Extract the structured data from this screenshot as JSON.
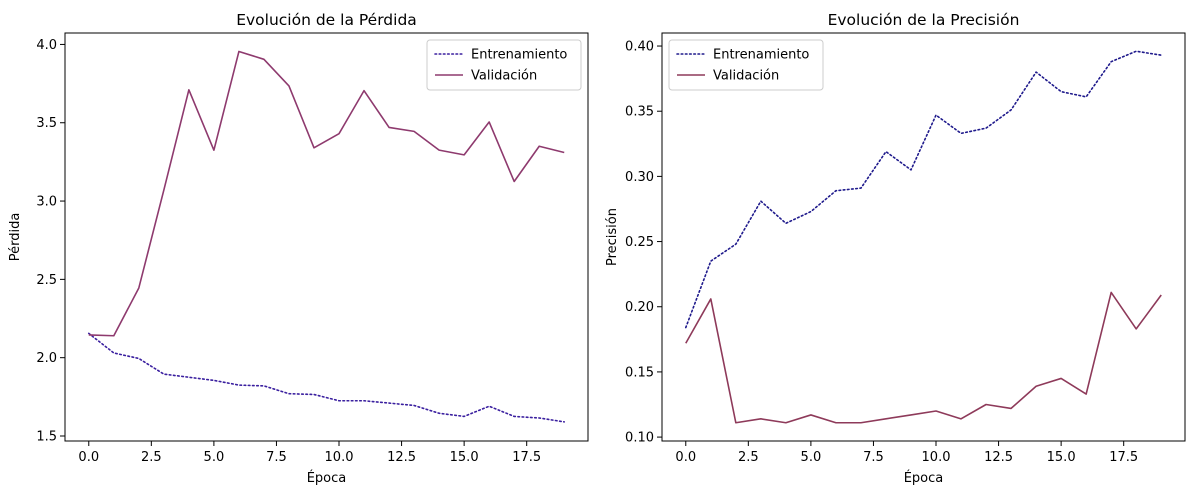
{
  "chart_data": [
    {
      "type": "line",
      "title": "Evolución de la Pérdida",
      "xlabel": "Época",
      "ylabel": "Pérdida",
      "xlim": [
        -0.95,
        19.95
      ],
      "ylim": [
        1.468,
        4.073
      ],
      "xticks": [
        0.0,
        2.5,
        5.0,
        7.5,
        10.0,
        12.5,
        15.0,
        17.5
      ],
      "xtick_labels": [
        "0.0",
        "2.5",
        "5.0",
        "7.5",
        "10.0",
        "12.5",
        "15.0",
        "17.5"
      ],
      "yticks": [
        1.5,
        2.0,
        2.5,
        3.0,
        3.5,
        4.0
      ],
      "ytick_labels": [
        "1.5",
        "2.0",
        "2.5",
        "3.0",
        "3.5",
        "4.0"
      ],
      "legend_position": "upper right",
      "x": [
        0,
        1,
        2,
        3,
        4,
        5,
        6,
        7,
        8,
        9,
        10,
        11,
        12,
        13,
        14,
        15,
        16,
        17,
        18,
        19
      ],
      "series": [
        {
          "name": "Entrenamiento",
          "color": "#3a1f9f",
          "style": "dotted",
          "values": [
            2.155,
            2.03,
            1.995,
            1.895,
            1.875,
            1.855,
            1.825,
            1.82,
            1.77,
            1.765,
            1.725,
            1.725,
            1.71,
            1.695,
            1.645,
            1.625,
            1.69,
            1.625,
            1.615,
            1.59
          ]
        },
        {
          "name": "Validación",
          "color": "#8e3a6e",
          "style": "solid",
          "values": [
            2.145,
            2.14,
            2.445,
            3.07,
            3.71,
            3.325,
            3.955,
            3.905,
            3.735,
            3.34,
            3.43,
            3.705,
            3.47,
            3.445,
            3.325,
            3.295,
            3.505,
            3.125,
            3.35,
            3.31
          ]
        }
      ]
    },
    {
      "type": "line",
      "title": "Evolución de la Precisión",
      "xlabel": "Época",
      "ylabel": "Precisión",
      "xlim": [
        -0.95,
        19.95
      ],
      "ylim": [
        0.097,
        0.41
      ],
      "xticks": [
        0.0,
        2.5,
        5.0,
        7.5,
        10.0,
        12.5,
        15.0,
        17.5
      ],
      "xtick_labels": [
        "0.0",
        "2.5",
        "5.0",
        "7.5",
        "10.0",
        "12.5",
        "15.0",
        "17.5"
      ],
      "yticks": [
        0.1,
        0.15,
        0.2,
        0.25,
        0.3,
        0.35,
        0.4
      ],
      "ytick_labels": [
        "0.10",
        "0.15",
        "0.20",
        "0.25",
        "0.30",
        "0.35",
        "0.40"
      ],
      "legend_position": "upper left",
      "x": [
        0,
        1,
        2,
        3,
        4,
        5,
        6,
        7,
        8,
        9,
        10,
        11,
        12,
        13,
        14,
        15,
        16,
        17,
        18,
        19
      ],
      "series": [
        {
          "name": "Entrenamiento",
          "color": "#1f1a8c",
          "style": "dotted",
          "values": [
            0.184,
            0.235,
            0.248,
            0.281,
            0.264,
            0.273,
            0.289,
            0.291,
            0.319,
            0.305,
            0.347,
            0.333,
            0.337,
            0.351,
            0.38,
            0.365,
            0.361,
            0.388,
            0.396,
            0.393
          ]
        },
        {
          "name": "Validación",
          "color": "#8e3a5a",
          "style": "solid",
          "values": [
            0.172,
            0.206,
            0.111,
            0.114,
            0.111,
            0.117,
            0.111,
            0.111,
            0.114,
            0.117,
            0.12,
            0.114,
            0.125,
            0.122,
            0.139,
            0.145,
            0.133,
            0.211,
            0.183,
            0.209
          ]
        }
      ]
    }
  ]
}
